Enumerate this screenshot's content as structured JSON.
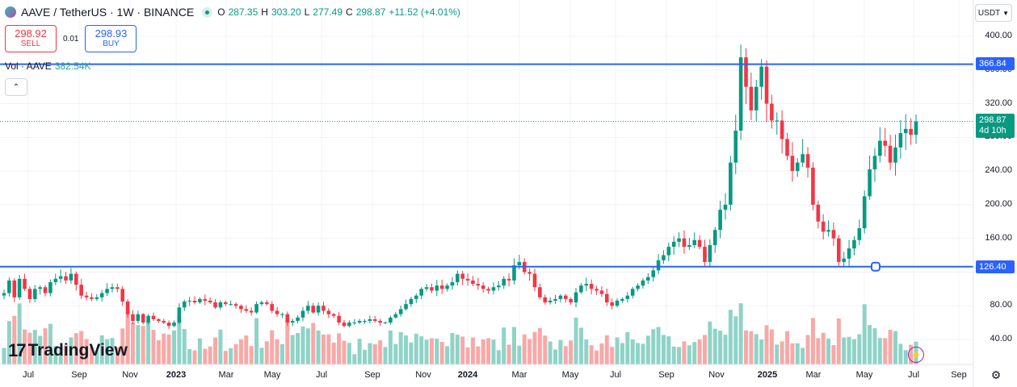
{
  "header": {
    "symbol": "AAVE / TetherUS · 1W · BINANCE",
    "ohlc": {
      "o_key": "O",
      "o_val": "287.35",
      "h_key": "H",
      "h_val": "303.20",
      "l_key": "L",
      "l_val": "277.49",
      "c_key": "C",
      "c_val": "298.87",
      "change": "+11.52 (+4.01%)"
    }
  },
  "trade": {
    "sell_price": "298.92",
    "sell_label": "SELL",
    "spread": "0.01",
    "buy_price": "298.93",
    "buy_label": "BUY"
  },
  "volume_legend": {
    "label": "Vol · AAVE",
    "value": "382.54K"
  },
  "currency_button": "USDT",
  "price_axis": {
    "ticks": [
      "400.00",
      "360.00",
      "320.00",
      "280.00",
      "240.00",
      "200.00",
      "160.00",
      "120.00",
      "80.00",
      "40.00"
    ],
    "line_upper": "366.84",
    "line_lower": "126.40",
    "last_price": "298.87",
    "countdown": "4d 10h"
  },
  "time_axis": {
    "labels": [
      {
        "t": "Jul",
        "bold": false
      },
      {
        "t": "Sep",
        "bold": false
      },
      {
        "t": "Nov",
        "bold": false
      },
      {
        "t": "2023",
        "bold": true
      },
      {
        "t": "Mar",
        "bold": false
      },
      {
        "t": "May",
        "bold": false
      },
      {
        "t": "Jul",
        "bold": false
      },
      {
        "t": "Sep",
        "bold": false
      },
      {
        "t": "Nov",
        "bold": false
      },
      {
        "t": "2024",
        "bold": true
      },
      {
        "t": "Mar",
        "bold": false
      },
      {
        "t": "May",
        "bold": false
      },
      {
        "t": "Jul",
        "bold": false
      },
      {
        "t": "Sep",
        "bold": false
      },
      {
        "t": "Nov",
        "bold": false
      },
      {
        "t": "2025",
        "bold": true
      },
      {
        "t": "Mar",
        "bold": false
      },
      {
        "t": "May",
        "bold": false
      },
      {
        "t": "Jul",
        "bold": false
      },
      {
        "t": "Sep",
        "bold": false
      }
    ]
  },
  "branding": {
    "logo_text": "TradingView",
    "logo_mark": "17"
  },
  "colors": {
    "up": "#089981",
    "down": "#f23645",
    "hline": "#2962ff",
    "vol_up": "#8fd3c7",
    "vol_down": "#f7a9a7"
  },
  "chart_data": {
    "type": "candlestick",
    "symbol": "AAVE / TetherUS",
    "timeframe": "1W",
    "ylim": [
      30,
      410
    ],
    "horizontal_lines": [
      366.84,
      126.4
    ],
    "candles_close_path": [
      95,
      110,
      90,
      112,
      100,
      88,
      100,
      102,
      95,
      108,
      112,
      115,
      110,
      118,
      105,
      92,
      90,
      88,
      90,
      95,
      100,
      102,
      100,
      85,
      70,
      62,
      70,
      60,
      68,
      64,
      62,
      60,
      56,
      60,
      78,
      85,
      86,
      84,
      88,
      86,
      84,
      78,
      84,
      82,
      82,
      80,
      76,
      74,
      72,
      82,
      84,
      82,
      74,
      70,
      70,
      60,
      62,
      66,
      74,
      80,
      72,
      80,
      74,
      70,
      68,
      60,
      56,
      60,
      60,
      62,
      62,
      64,
      62,
      60,
      60,
      66,
      70,
      76,
      82,
      88,
      92,
      100,
      102,
      98,
      104,
      100,
      104,
      108,
      118,
      112,
      110,
      106,
      104,
      100,
      98,
      102,
      104,
      112,
      110,
      128,
      132,
      120,
      118,
      102,
      90,
      84,
      86,
      88,
      92,
      88,
      84,
      96,
      104,
      106,
      100,
      98,
      94,
      84,
      80,
      86,
      88,
      92,
      100,
      104,
      110,
      114,
      122,
      134,
      140,
      150,
      156,
      160,
      150,
      152,
      158,
      150,
      132,
      152,
      170,
      194,
      200,
      250,
      288,
      375,
      340,
      312,
      340,
      364,
      320,
      300,
      300,
      278,
      258,
      240,
      250,
      260,
      244,
      200,
      180,
      168,
      170,
      160,
      132,
      136,
      148,
      158,
      172,
      210,
      242,
      258,
      276,
      270,
      250,
      268,
      285,
      290,
      283,
      298.87
    ],
    "volume_note": "Volume histogram in lower pane; latest bar value 382.54K"
  }
}
